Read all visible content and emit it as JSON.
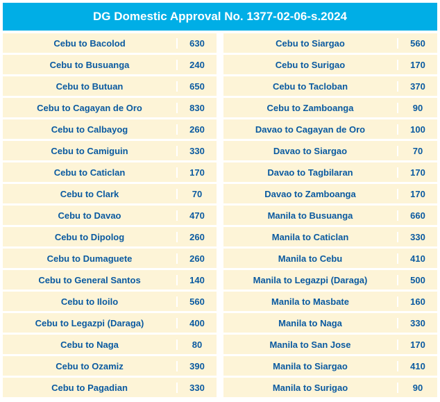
{
  "title": "DG Domestic Approval No. 1377-02-06-s.2024",
  "header_bg": "#00aee6",
  "header_color": "#ffffff",
  "row_bg": "#fdf4d7",
  "text_color": "#0a5aa0",
  "left": [
    {
      "route": "Cebu to Bacolod",
      "value": "630"
    },
    {
      "route": "Cebu to Busuanga",
      "value": "240"
    },
    {
      "route": "Cebu to Butuan",
      "value": "650"
    },
    {
      "route": "Cebu to Cagayan de Oro",
      "value": "830"
    },
    {
      "route": "Cebu to Calbayog",
      "value": "260"
    },
    {
      "route": "Cebu to Camiguin",
      "value": "330"
    },
    {
      "route": "Cebu to Caticlan",
      "value": "170"
    },
    {
      "route": "Cebu to Clark",
      "value": "70"
    },
    {
      "route": "Cebu to Davao",
      "value": "470"
    },
    {
      "route": "Cebu to Dipolog",
      "value": "260"
    },
    {
      "route": "Cebu to Dumaguete",
      "value": "260"
    },
    {
      "route": "Cebu to General Santos",
      "value": "140"
    },
    {
      "route": "Cebu to Iloilo",
      "value": "560"
    },
    {
      "route": "Cebu to Legazpi (Daraga)",
      "value": "400"
    },
    {
      "route": "Cebu to Naga",
      "value": "80"
    },
    {
      "route": "Cebu to Ozamiz",
      "value": "390"
    },
    {
      "route": "Cebu to Pagadian",
      "value": "330"
    }
  ],
  "right": [
    {
      "route": "Cebu to Siargao",
      "value": "560"
    },
    {
      "route": "Cebu to Surigao",
      "value": "170"
    },
    {
      "route": "Cebu to Tacloban",
      "value": "370"
    },
    {
      "route": "Cebu to Zamboanga",
      "value": "90"
    },
    {
      "route": "Davao to Cagayan de Oro",
      "value": "100"
    },
    {
      "route": "Davao to Siargao",
      "value": "70"
    },
    {
      "route": "Davao to Tagbilaran",
      "value": "170"
    },
    {
      "route": "Davao to Zamboanga",
      "value": "170"
    },
    {
      "route": "Manila to Busuanga",
      "value": "660"
    },
    {
      "route": "Manila to Caticlan",
      "value": "330"
    },
    {
      "route": "Manila to Cebu",
      "value": "410"
    },
    {
      "route": "Manila to Legazpi (Daraga)",
      "value": "500"
    },
    {
      "route": "Manila to Masbate",
      "value": "160"
    },
    {
      "route": "Manila to Naga",
      "value": "330"
    },
    {
      "route": "Manila to San Jose",
      "value": "170"
    },
    {
      "route": "Manila to Siargao",
      "value": "410"
    },
    {
      "route": "Manila to Surigao",
      "value": "90"
    }
  ]
}
